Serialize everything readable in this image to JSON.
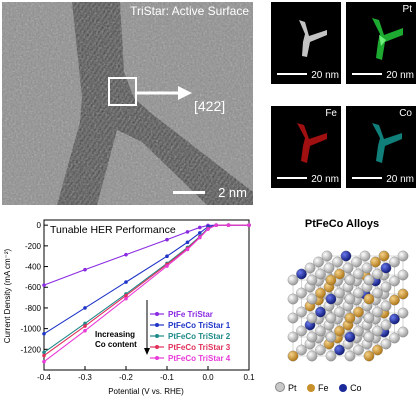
{
  "tem_panel": {
    "title": "TriStar: Active Surface",
    "direction_label": "[422]",
    "scale_label": "2 nm"
  },
  "eds_maps": [
    {
      "label": "",
      "scale_label": "20 nm",
      "color": "#d8d8d8"
    },
    {
      "label": "Pt",
      "scale_label": "20 nm",
      "color": "#22c83a"
    },
    {
      "label": "Fe",
      "scale_label": "20 nm",
      "color": "#e01818"
    },
    {
      "label": "Co",
      "scale_label": "20 nm",
      "color": "#19b6b0"
    }
  ],
  "annotation": {
    "line1": "Increasing",
    "line2": "Co content"
  },
  "chart_data": {
    "type": "line",
    "title": "Tunable HER Performance",
    "xlabel": "Potential (V vs. RHE)",
    "ylabel": "Current Density (mA cm⁻²)",
    "xlim": [
      -0.4,
      0.1
    ],
    "ylim": [
      -1400,
      50
    ],
    "xticks": [
      -0.4,
      -0.3,
      -0.2,
      -0.1,
      0.0,
      0.1
    ],
    "xtick_labels": [
      "-0.4",
      "-0.3",
      "-0.2",
      "-0.1",
      "0.0",
      "0.1"
    ],
    "yticks": [
      0,
      -200,
      -400,
      -600,
      -800,
      -1000,
      -1200
    ],
    "ytick_labels": [
      "0",
      "-200",
      "-400",
      "-600",
      "-800",
      "-1000",
      "-1200"
    ],
    "legend_position": "lower-right",
    "series": [
      {
        "name": "PtFe TriStar",
        "color": "#8a2be2",
        "x": [
          -0.4,
          -0.3,
          -0.2,
          -0.1,
          -0.05,
          -0.02,
          0.0,
          0.02,
          0.05,
          0.1
        ],
        "y": [
          -580,
          -430,
          -285,
          -140,
          -65,
          -22,
          -3,
          0,
          0,
          0
        ]
      },
      {
        "name": "PtFeCo TriStar 1",
        "color": "#1f35c8",
        "x": [
          -0.4,
          -0.3,
          -0.2,
          -0.1,
          -0.05,
          -0.02,
          0.0,
          0.02,
          0.05,
          0.1
        ],
        "y": [
          -1050,
          -800,
          -550,
          -300,
          -165,
          -75,
          -15,
          0,
          0,
          0
        ]
      },
      {
        "name": "PtFeCo TriStar 2",
        "color": "#1e8a8a",
        "x": [
          -0.4,
          -0.3,
          -0.2,
          -0.1,
          -0.05,
          -0.02,
          0.0,
          0.02,
          0.05,
          0.1
        ],
        "y": [
          -1230,
          -950,
          -665,
          -370,
          -215,
          -110,
          -30,
          0,
          0,
          0
        ]
      },
      {
        "name": "PtFeCo TriStar 3",
        "color": "#e0305a",
        "x": [
          -0.4,
          -0.3,
          -0.2,
          -0.1,
          -0.05,
          -0.02,
          0.0,
          0.02,
          0.05,
          0.1
        ],
        "y": [
          -1260,
          -975,
          -680,
          -380,
          -225,
          -115,
          -35,
          0,
          0,
          0
        ]
      },
      {
        "name": "PtFeCo TriStar 4",
        "color": "#e83ad8",
        "x": [
          -0.4,
          -0.3,
          -0.2,
          -0.1,
          -0.05,
          -0.02,
          0.0,
          0.02,
          0.05,
          0.1
        ],
        "y": [
          -1320,
          -1020,
          -710,
          -395,
          -235,
          -120,
          -38,
          0,
          0,
          0
        ]
      }
    ]
  },
  "alloy_panel": {
    "title": "PtFeCo Alloys",
    "legend": [
      {
        "label": "Pt",
        "color": "#c8c8c8"
      },
      {
        "label": "Fe",
        "color": "#c8902a"
      },
      {
        "label": "Co",
        "color": "#1a2a9a"
      }
    ]
  }
}
